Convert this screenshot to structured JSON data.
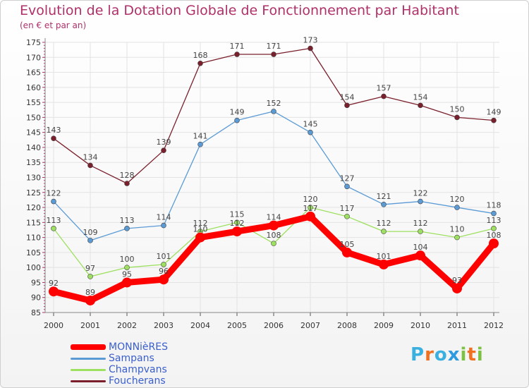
{
  "header": {
    "title": "Evolution de la Dotation Globale de Fonctionnement par Habitant",
    "subtitle": "(en € et par an)"
  },
  "logo": {
    "text": "Proxiti",
    "colors": [
      "#3ab0e0",
      "#f07020",
      "#3ab0e0",
      "#2e9adf",
      "#7cc242",
      "#f07020",
      "#7cc242"
    ]
  },
  "chart_data": {
    "type": "line",
    "x": [
      "2000",
      "2001",
      "2002",
      "2003",
      "2004",
      "2005",
      "2006",
      "2007",
      "2008",
      "2009",
      "2010",
      "2011",
      "2012"
    ],
    "ylim": [
      85,
      175
    ],
    "yticks": [
      85,
      90,
      95,
      100,
      105,
      110,
      115,
      120,
      125,
      130,
      135,
      140,
      145,
      150,
      155,
      160,
      165,
      170,
      175
    ],
    "grid": true,
    "legend": "bottom-left",
    "series": [
      {
        "name": "Foucherans",
        "color": "#7a1f2b",
        "values": [
          143,
          134,
          128,
          139,
          168,
          171,
          171,
          173,
          154,
          157,
          154,
          150,
          149
        ]
      },
      {
        "name": "Sampans",
        "color": "#5b9bd5",
        "values": [
          122,
          109,
          113,
          114,
          141,
          149,
          152,
          145,
          127,
          121,
          122,
          120,
          118
        ]
      },
      {
        "name": "Champvans",
        "color": "#9ee060",
        "values": [
          113,
          97,
          100,
          101,
          112,
          115,
          108,
          120,
          117,
          112,
          112,
          110,
          113
        ]
      },
      {
        "name": "MONNièRES",
        "color": "#ff0000",
        "values": [
          92,
          89,
          95,
          96,
          110,
          112,
          114,
          117,
          105,
          101,
          104,
          93,
          108
        ]
      }
    ],
    "point_labels": {
      "Foucherans": [
        "143",
        "134",
        "128",
        "139",
        "168",
        "171",
        "171",
        "173",
        "154",
        "157",
        "154",
        "150",
        "149"
      ],
      "Sampans": [
        "122",
        "109",
        "113",
        "114",
        "141",
        "149",
        "152",
        "145",
        "127",
        "121",
        "122",
        "120",
        "118"
      ],
      "Champvans": [
        "113",
        "97",
        "100",
        "101",
        "112",
        "115",
        "108",
        "120",
        "117",
        "112",
        "112",
        "110",
        "113"
      ],
      "MONNièRES": [
        "92",
        "89",
        "95",
        "96",
        "110",
        "112",
        "114",
        "117",
        "105",
        "101",
        "104",
        "93",
        "108"
      ]
    }
  },
  "legend": {
    "items": [
      {
        "label": "MONNièRES",
        "color": "#ff0000"
      },
      {
        "label": "Sampans",
        "color": "#5b9bd5"
      },
      {
        "label": "Champvans",
        "color": "#9ee060"
      },
      {
        "label": "Foucherans",
        "color": "#7a1f2b"
      }
    ]
  }
}
